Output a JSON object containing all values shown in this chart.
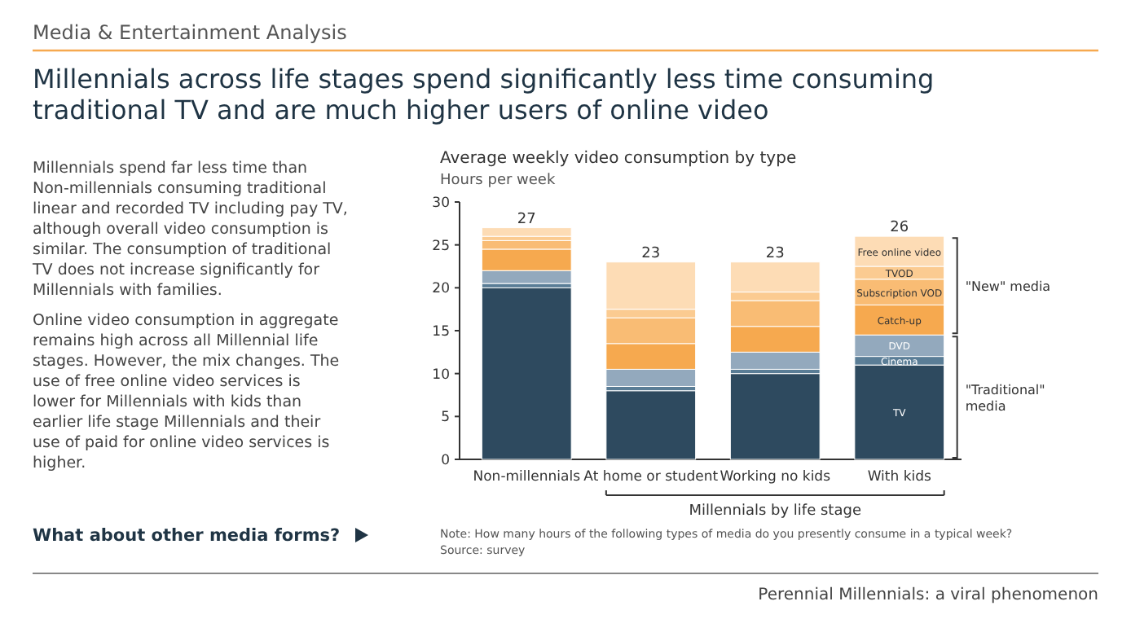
{
  "chart_data": {
    "type": "bar",
    "stacked": true,
    "title": "Millennials across life stages spend significantly less time consuming traditional TV and are much higher users of online video",
    "subtitle": "Media & Entertainment Analysis",
    "xlabel": "Millennials by life stage",
    "ylabel": "Hours per week",
    "categories": [
      "Non-millennials",
      "At home or student",
      "Working no kids",
      "With kids"
    ],
    "series": [
      {
        "name": "TV",
        "color": "#2e4a5f",
        "values": [
          20,
          8,
          10,
          11
        ]
      },
      {
        "name": "Cinema",
        "color": "#5a7d96",
        "values": [
          0.5,
          0.5,
          0.5,
          1
        ]
      },
      {
        "name": "DVD",
        "color": "#93a9bd",
        "values": [
          1.5,
          2,
          2,
          2.5
        ]
      },
      {
        "name": "Catch-up",
        "color": "#f6a94f",
        "values": [
          2.5,
          3,
          3,
          3.5
        ]
      },
      {
        "name": "Subscription VOD",
        "color": "#f9bc74",
        "values": [
          1,
          3,
          3,
          3
        ]
      },
      {
        "name": "TVOD",
        "color": "#fbcb91",
        "values": [
          0.5,
          1,
          1,
          1.5
        ]
      },
      {
        "name": "Free online video",
        "color": "#fddcb5",
        "values": [
          1,
          5.5,
          3.5,
          3.5
        ]
      }
    ],
    "totals": [
      "27",
      "23",
      "23",
      "26"
    ],
    "ylim": [
      0,
      30
    ],
    "yticks": [
      0,
      5,
      10,
      15,
      20,
      25,
      30
    ],
    "grid": false,
    "annotations": [
      "Average weekly video consumption by type",
      "Millennials spend far less time than Non-millennials consuming traditional linear and recorded TV including pay TV, although overall video consumption is similar. The consumption of traditional TV does not increase significantly for Millennials with families.",
      "Online video consumption in aggregate remains high across all Millennial life stages. However, the mix changes. The use of free online video services is lower for Millennials with kids than earlier life stage Millennials and their use of paid for online video services is higher.",
      "What about other media forms?",
      "Note: How many hours of the following types of media do you presently consume in a typical week?",
      "Source: survey",
      "Perennial Millennials: a viral phenomenon",
      "\"New\" media",
      "\"Traditional\" media"
    ]
  }
}
